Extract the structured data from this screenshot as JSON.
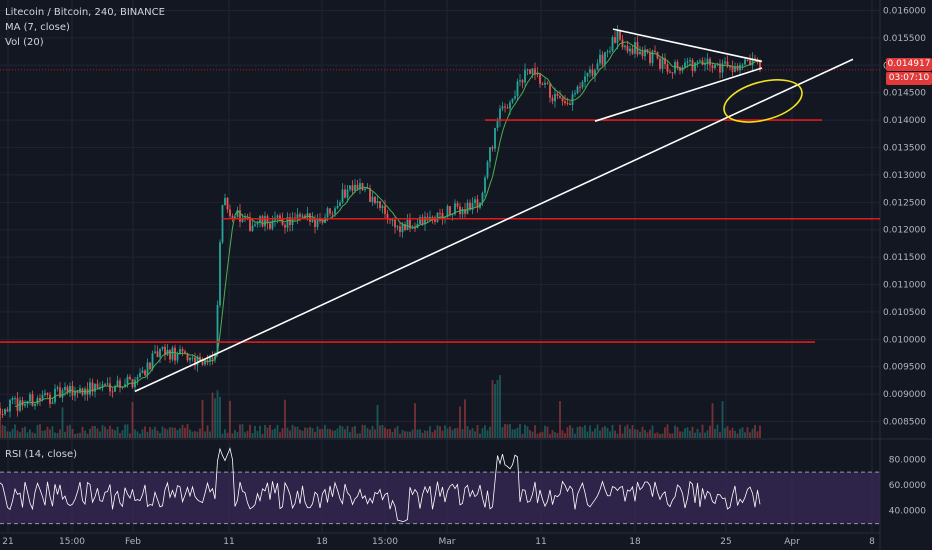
{
  "header": {
    "symbol": "Litecoin / Bitcoin, 240, BINANCE",
    "ma_label": "MA (7, close)",
    "vol_label": "Vol (20)",
    "rsi_label": "RSI (14, close)"
  },
  "price_tag": "0.014917",
  "countdown_tag": "03:07:10",
  "colors": {
    "background": "#131722",
    "up": "#26a69a",
    "down": "#ef5350",
    "ma": "#4caf50",
    "level_line": "#e01b1b",
    "trendline": "#ffffff",
    "highlight": "#f2e21b",
    "rsi_line": "#ffffff",
    "rsi_band": "#3b2a58",
    "axis_text": "#b2b5be"
  },
  "chart_data": [
    {
      "type": "candlestick",
      "title": "Litecoin / Bitcoin, 240, BINANCE",
      "ylim": [
        0.0082,
        0.0161
      ],
      "y_ticks": [
        "0.016000",
        "0.015500",
        "0.015000",
        "0.014500",
        "0.014000",
        "0.013500",
        "0.013000",
        "0.012500",
        "0.012000",
        "0.011500",
        "0.011000",
        "0.010500",
        "0.010000",
        "0.009500",
        "0.009000",
        "0.008500"
      ],
      "x_ticks": [
        "21",
        "15:00",
        "Feb",
        "11",
        "18",
        "15:00",
        "Mar",
        "11",
        "18",
        "25",
        "Apr",
        "8"
      ],
      "anchors": [
        {
          "x": "21",
          "y": 0.00875
        },
        {
          "x": "15:00",
          "y": 0.00905
        },
        {
          "x": "Feb",
          "y": 0.00925
        },
        {
          "x": "Feb",
          "y": 0.00975
        },
        {
          "x": "11",
          "y": 0.0096
        },
        {
          "x": "11",
          "y": 0.0125
        },
        {
          "x": "11",
          "y": 0.0121
        },
        {
          "x": "18",
          "y": 0.0122
        },
        {
          "x": "18",
          "y": 0.0129
        },
        {
          "x": "15:00",
          "y": 0.012
        },
        {
          "x": "Mar",
          "y": 0.0125
        },
        {
          "x": "Mar",
          "y": 0.014
        },
        {
          "x": "11",
          "y": 0.0149
        },
        {
          "x": "11",
          "y": 0.0142
        },
        {
          "x": "18",
          "y": 0.0155
        },
        {
          "x": "18",
          "y": 0.015
        },
        {
          "x": "25",
          "y": 0.015
        }
      ],
      "last_price": 0.014917,
      "horizontal_levels": [
        0.014,
        0.0122,
        0.00995
      ],
      "current_price_line": 0.014917,
      "ma_period": 7,
      "grid": true
    },
    {
      "type": "bar",
      "title": "Vol (20)",
      "series": [
        {
          "name": "Vol (20)"
        }
      ]
    },
    {
      "type": "line",
      "title": "RSI (14, close)",
      "ylim": [
        25,
        95
      ],
      "y_ticks": [
        "80.0000",
        "60.0000",
        "40.0000"
      ],
      "band": [
        30,
        70
      ],
      "last_value": 45
    }
  ]
}
